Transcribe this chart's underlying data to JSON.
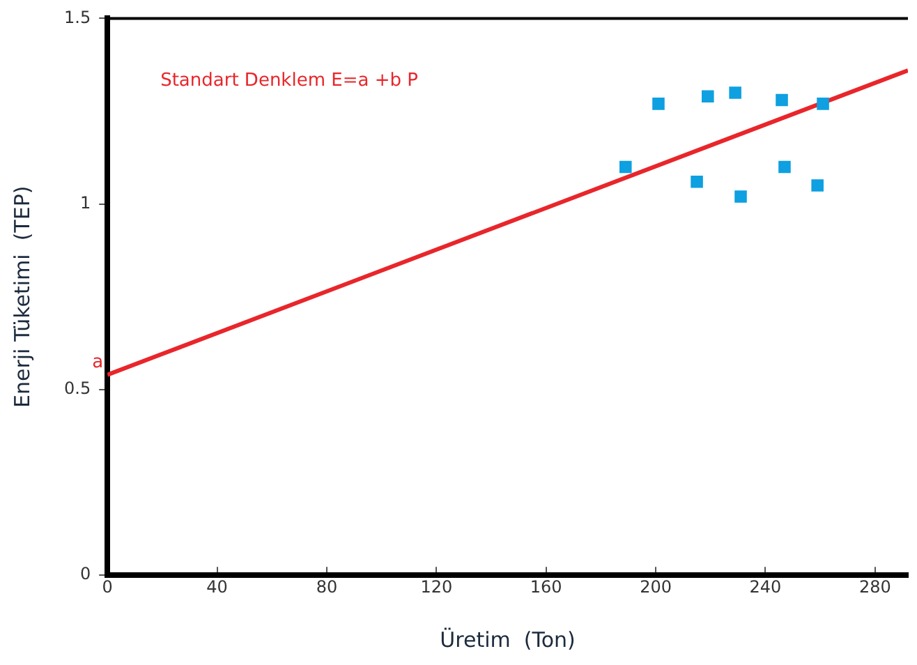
{
  "chart_data": {
    "type": "scatter",
    "xlabel": "Üretim  (Ton)",
    "ylabel": "Enerji Tüketimi  (TEP)",
    "xlim": [
      0,
      292
    ],
    "xticks": [
      0,
      40,
      80,
      120,
      160,
      200,
      240,
      280
    ],
    "ylim": [
      0,
      1.5
    ],
    "yticks": [
      0,
      0.5,
      1,
      1.5
    ],
    "grid": false,
    "legend": false,
    "marker": "square",
    "series": [
      {
        "color": "#0ea0e0",
        "x": [
          189,
          201,
          219,
          229,
          246,
          261,
          215,
          231,
          247,
          259
        ],
        "values": [
          1.1,
          1.27,
          1.29,
          1.3,
          1.28,
          1.27,
          1.06,
          1.02,
          1.1,
          1.05
        ]
      },
      {
        "type": "line",
        "color": "#e8262b",
        "marker": "none",
        "line_style": "solid",
        "x": [
          0,
          292
        ],
        "values": [
          0.54,
          1.36
        ]
      }
    ],
    "annotations": [
      "Standart Denklem E=a +b P",
      {
        "text": "a",
        "x": 0,
        "y": 0.54
      }
    ]
  }
}
